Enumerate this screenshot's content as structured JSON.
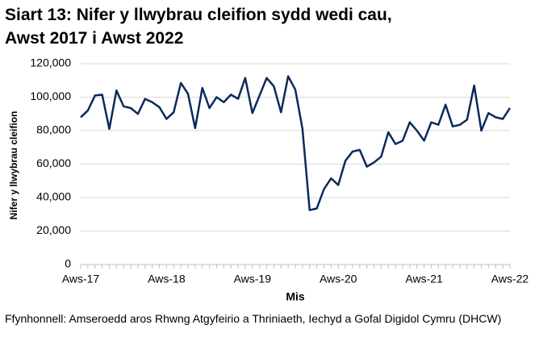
{
  "chart_data": {
    "type": "line",
    "title": [
      "Siart 13: Nifer y llwybrau cleifion sydd wedi cau,",
      "Awst 2017 i Awst 2022"
    ],
    "y_label": "Nifer y llwybrau cleifion",
    "x_label": "Mis",
    "source": "Ffynhonnell: Amseroedd aros Rhwng Atgyfeirio a Thriniaeth, Iechyd a Gofal Digidol Cymru (DHCW)",
    "categories": [
      "Aws-17",
      null,
      null,
      null,
      null,
      null,
      null,
      null,
      null,
      null,
      null,
      null,
      "Aws-18",
      null,
      null,
      null,
      null,
      null,
      null,
      null,
      null,
      null,
      null,
      null,
      "Aws-19",
      null,
      null,
      null,
      null,
      null,
      null,
      null,
      null,
      null,
      null,
      null,
      "Aws-20",
      null,
      null,
      null,
      null,
      null,
      null,
      null,
      null,
      null,
      null,
      null,
      "Aws-21",
      null,
      null,
      null,
      null,
      null,
      null,
      null,
      null,
      null,
      null,
      null,
      "Aws-22"
    ],
    "series": [
      {
        "color": "#0b2a5b",
        "values": [
          88000,
          92000,
          101000,
          101500,
          81000,
          104000,
          94500,
          93500,
          90000,
          99000,
          97000,
          94000,
          87000,
          91000,
          108500,
          102000,
          81500,
          105500,
          93500,
          100000,
          97000,
          101500,
          99000,
          111500,
          90500,
          101000,
          111500,
          106500,
          91000,
          112500,
          104500,
          81000,
          32500,
          33500,
          45000,
          51500,
          47500,
          62000,
          67500,
          68500,
          58500,
          61000,
          64500,
          79000,
          72000,
          74000,
          85000,
          80000,
          74000,
          85000,
          83500,
          95500,
          82500,
          83500,
          86500,
          107000,
          80000,
          90500,
          88000,
          87000,
          93500
        ]
      }
    ],
    "ylim": [
      0,
      120000
    ],
    "yticks": [
      0,
      {
        "value": 20000,
        "label": "20,000"
      },
      {
        "value": 40000,
        "label": "40,000"
      },
      {
        "value": 60000,
        "label": "60,000"
      },
      {
        "value": 80000,
        "label": "80,000"
      },
      {
        "value": 100000,
        "label": "100,000"
      },
      {
        "value": 120000,
        "label": "120,000"
      }
    ],
    "grid": true
  }
}
